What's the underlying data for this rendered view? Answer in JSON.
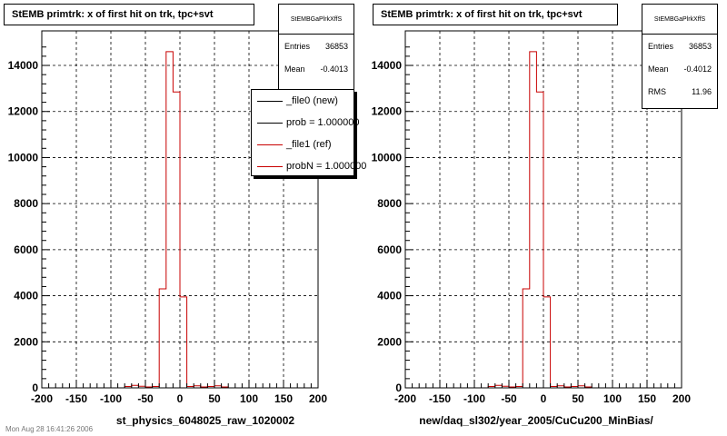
{
  "footer": "Mon Aug 28 16:41:26 2006",
  "chart_data": [
    {
      "type": "bar",
      "title": "StEMB primtrk: x of first hit on trk, tpc+svt",
      "xlabel": "st_physics_6048025_raw_1020002",
      "ylabel": "",
      "xlim": [
        -200,
        200
      ],
      "ylim": [
        0,
        15500
      ],
      "grid": true,
      "x_ticks": [
        "-200",
        "-150",
        "-100",
        "-50",
        "0",
        "50",
        "100",
        "150",
        "200"
      ],
      "y_ticks": [
        "0",
        "2000",
        "4000",
        "6000",
        "8000",
        "10000",
        "12000",
        "14000"
      ],
      "stats": {
        "name": "StEMBGaPlrkXffS",
        "rows": [
          {
            "label": "Entries",
            "value": "36853"
          },
          {
            "label": "Mean",
            "value": "-0.4013"
          }
        ]
      },
      "legend": [
        "_file0 (new)",
        "prob = 1.000000",
        "_file1 (ref)",
        "probN = 1.000000"
      ],
      "bins": {
        "low": -200,
        "width": 10,
        "values": [
          0,
          0,
          0,
          0,
          0,
          0,
          0,
          0,
          0,
          0,
          0,
          0,
          60,
          110,
          70,
          40,
          60,
          4300,
          14600,
          12850,
          3950,
          60,
          90,
          40,
          60,
          90,
          40,
          0,
          0,
          0,
          0,
          0,
          0,
          0,
          0,
          0,
          0,
          0,
          0,
          0
        ]
      }
    },
    {
      "type": "bar",
      "title": "StEMB primtrk: x of first hit on trk, tpc+svt",
      "xlabel": "new/daq_sl302/year_2005/CuCu200_MinBias/",
      "ylabel": "",
      "xlim": [
        -200,
        200
      ],
      "ylim": [
        0,
        15500
      ],
      "grid": true,
      "x_ticks": [
        "-200",
        "-150",
        "-100",
        "-50",
        "0",
        "50",
        "100",
        "150",
        "200"
      ],
      "y_ticks": [
        "0",
        "2000",
        "4000",
        "6000",
        "8000",
        "10000",
        "12000",
        "14000"
      ],
      "stats": {
        "name": "StEMBGaPlrkXffS",
        "rows": [
          {
            "label": "Entries",
            "value": "36853"
          },
          {
            "label": "Mean",
            "value": "-0.4012"
          },
          {
            "label": "RMS",
            "value": "11.96"
          }
        ]
      },
      "legend": [],
      "bins": {
        "low": -200,
        "width": 10,
        "values": [
          0,
          0,
          0,
          0,
          0,
          0,
          0,
          0,
          0,
          0,
          0,
          0,
          60,
          110,
          70,
          40,
          60,
          4300,
          14600,
          12850,
          3950,
          60,
          90,
          40,
          60,
          90,
          40,
          0,
          0,
          0,
          0,
          0,
          0,
          0,
          0,
          0,
          0,
          0,
          0,
          0
        ]
      }
    }
  ]
}
